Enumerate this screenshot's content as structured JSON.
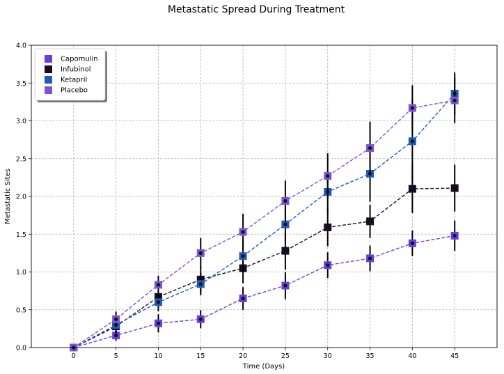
{
  "chart_data": {
    "type": "line",
    "title": "Metastatic Spread During Treatment",
    "xlabel": "Time (Days)",
    "ylabel": "Metastatic Sites",
    "xlim": [
      -5,
      50
    ],
    "ylim": [
      0,
      4.0
    ],
    "x_ticks": [
      0,
      5,
      10,
      15,
      20,
      25,
      30,
      35,
      40,
      45
    ],
    "y_ticks": [
      0.0,
      0.5,
      1.0,
      1.5,
      2.0,
      2.5,
      3.0,
      3.5,
      4.0
    ],
    "x_tick_labels": [
      "0",
      "5",
      "10",
      "15",
      "20",
      "25",
      "30",
      "35",
      "40",
      "45"
    ],
    "y_tick_labels": [
      "0.0",
      "0.5",
      "1.0",
      "1.5",
      "2.0",
      "2.5",
      "3.0",
      "3.5",
      "4.0"
    ],
    "grid": true,
    "legend_position": "top-left",
    "x": [
      0,
      5,
      10,
      15,
      20,
      25,
      30,
      35,
      40,
      45
    ],
    "series": [
      {
        "name": "Capomulin",
        "color": "#6a3fdc",
        "values": [
          0.0,
          0.16,
          0.32,
          0.375,
          0.65,
          0.82,
          1.09,
          1.18,
          1.38,
          1.48
        ],
        "errors": [
          0.0,
          0.07,
          0.12,
          0.12,
          0.15,
          0.18,
          0.17,
          0.17,
          0.17,
          0.2
        ]
      },
      {
        "name": "Infubinol",
        "color": "#1a0b26",
        "values": [
          0.0,
          0.28,
          0.67,
          0.9,
          1.05,
          1.28,
          1.59,
          1.67,
          2.1,
          2.11
        ],
        "errors": [
          0.0,
          0.1,
          0.13,
          0.17,
          0.2,
          0.25,
          0.25,
          0.22,
          0.32,
          0.31
        ]
      },
      {
        "name": "Ketapril",
        "color": "#1f5bbd",
        "values": [
          0.0,
          0.3,
          0.6,
          0.84,
          1.21,
          1.63,
          2.06,
          2.3,
          2.73,
          3.36
        ],
        "errors": [
          0.0,
          0.1,
          0.12,
          0.15,
          0.21,
          0.25,
          0.28,
          0.37,
          0.55,
          0.28
        ]
      },
      {
        "name": "Placebo",
        "color": "#7b54d6",
        "values": [
          0.0,
          0.375,
          0.83,
          1.25,
          1.53,
          1.94,
          2.27,
          2.64,
          3.17,
          3.27
        ],
        "errors": [
          0.0,
          0.1,
          0.12,
          0.2,
          0.24,
          0.27,
          0.3,
          0.35,
          0.3,
          0.3
        ]
      }
    ]
  }
}
